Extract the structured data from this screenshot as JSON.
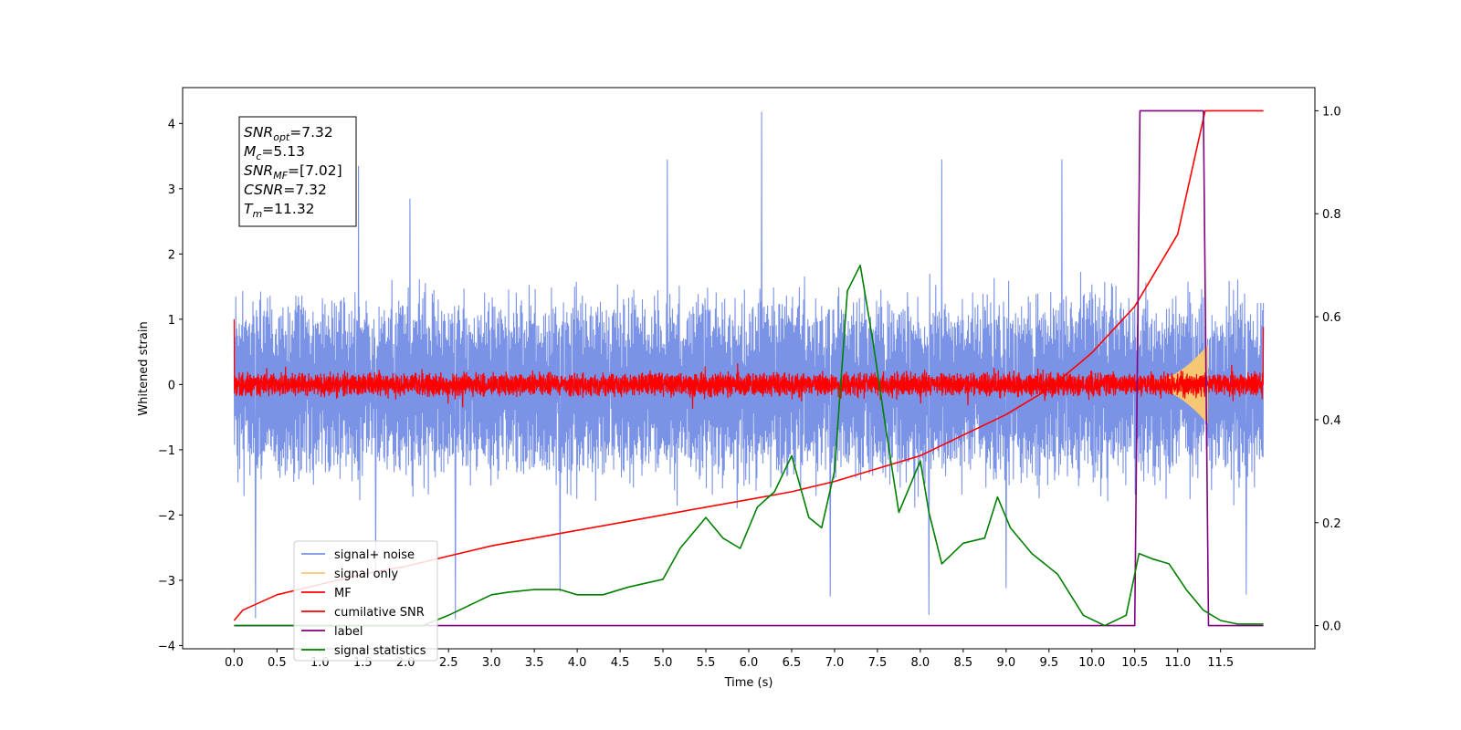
{
  "chart_data": {
    "type": "line",
    "title": "",
    "xlabel": "Time (s)",
    "ylabel": "Whitened strain",
    "y2label": "",
    "xlim": [
      -0.6,
      12.6
    ],
    "ylim": [
      -4.05,
      4.55
    ],
    "y2lim": [
      -0.045,
      1.045
    ],
    "x_ticks": [
      0.0,
      0.5,
      1.0,
      1.5,
      2.0,
      2.5,
      3.0,
      3.5,
      4.0,
      4.5,
      5.0,
      5.5,
      6.0,
      6.5,
      7.0,
      7.5,
      8.0,
      8.5,
      9.0,
      9.5,
      10.0,
      10.5,
      11.0,
      11.5
    ],
    "x_tick_labels": [
      "0.0",
      "0.5",
      "1.0",
      "1.5",
      "2.0",
      "2.5",
      "3.0",
      "3.5",
      "4.0",
      "4.5",
      "5.0",
      "5.5",
      "6.0",
      "6.5",
      "7.0",
      "7.5",
      "8.0",
      "8.5",
      "9.0",
      "9.5",
      "10.0",
      "10.5",
      "11.0",
      "11.5"
    ],
    "y_ticks": [
      4,
      3,
      2,
      1,
      0,
      -1,
      -2,
      -3,
      -4
    ],
    "y_tick_labels": [
      "4",
      "3",
      "2",
      "1",
      "0",
      "−1",
      "−2",
      "−3",
      "−4"
    ],
    "y2_ticks": [
      1.0,
      0.8,
      0.6,
      0.4,
      0.2,
      0.0
    ],
    "y2_tick_labels": [
      "1.0",
      "0.8",
      "0.6",
      "0.4",
      "0.2",
      "0.0"
    ],
    "grid": false,
    "legend_position": "lower-left",
    "annotation_box": {
      "position": "top-left",
      "lines": [
        {
          "label": "SNR",
          "sub": "opt",
          "value": "=7.32"
        },
        {
          "label": "M",
          "sub": "c",
          "value": "=5.13"
        },
        {
          "label": "SNR",
          "sub": "MF",
          "value": "=[7.02]"
        },
        {
          "label": "CSNR",
          "sub": "",
          "value": "=7.32"
        },
        {
          "label": "T",
          "sub": "m",
          "value": "=11.32"
        }
      ]
    },
    "series": [
      {
        "name": "signal+ noise",
        "axis": "left",
        "color": "#7b93e6",
        "kind": "noise_band",
        "x_range": [
          0.0,
          12.0
        ],
        "center": -0.05,
        "typical_amplitude": 1.2,
        "peaks": [
          {
            "x": 6.15,
            "y": 4.18
          },
          {
            "x": 1.45,
            "y": 3.35
          },
          {
            "x": 5.05,
            "y": 3.45
          },
          {
            "x": 8.25,
            "y": 3.45
          },
          {
            "x": 9.65,
            "y": 3.45
          },
          {
            "x": 2.05,
            "y": 2.85
          },
          {
            "x": 0.25,
            "y": -3.58
          },
          {
            "x": 8.1,
            "y": -3.53
          },
          {
            "x": 11.8,
            "y": -3.22
          },
          {
            "x": 2.58,
            "y": -3.6
          },
          {
            "x": 3.8,
            "y": -3.18
          },
          {
            "x": 6.95,
            "y": -3.25
          },
          {
            "x": 1.65,
            "y": -3.0
          },
          {
            "x": 9.0,
            "y": -3.12
          }
        ]
      },
      {
        "name": "signal only",
        "axis": "left",
        "color": "#f7c873",
        "kind": "chirp",
        "x_range": [
          10.5,
          11.35
        ],
        "peak_amplitude": 0.6
      },
      {
        "name": "MF",
        "axis": "left",
        "color": "#ff0000",
        "kind": "noise_band",
        "x_range": [
          0.0,
          12.0
        ],
        "center": 0.0,
        "typical_amplitude": 0.15,
        "edge_values": {
          "start": 1.0,
          "end": 0.88
        }
      },
      {
        "name": "cumilative SNR",
        "axis": "right",
        "color": "#ff0000",
        "x": [
          0.0,
          0.1,
          0.5,
          1.0,
          1.5,
          2.0,
          2.5,
          3.0,
          3.5,
          4.0,
          4.5,
          5.0,
          5.5,
          6.0,
          6.5,
          7.0,
          7.5,
          8.0,
          8.5,
          9.0,
          9.5,
          10.0,
          10.5,
          11.0,
          11.32,
          12.0
        ],
        "y": [
          0.01,
          0.03,
          0.06,
          0.08,
          0.1,
          0.115,
          0.135,
          0.155,
          0.17,
          0.185,
          0.2,
          0.215,
          0.23,
          0.245,
          0.26,
          0.28,
          0.305,
          0.33,
          0.37,
          0.41,
          0.46,
          0.53,
          0.62,
          0.76,
          1.0,
          1.0
        ]
      },
      {
        "name": "label",
        "axis": "right",
        "color": "#800080",
        "x": [
          0.0,
          10.5,
          10.56,
          11.3,
          11.36,
          12.0
        ],
        "y": [
          0.0,
          0.0,
          1.0,
          1.0,
          0.0,
          0.0
        ]
      },
      {
        "name": "signal statistics",
        "axis": "right",
        "color": "#008000",
        "x": [
          0.0,
          2.2,
          2.5,
          3.0,
          3.2,
          3.5,
          3.8,
          4.0,
          4.3,
          4.6,
          5.0,
          5.2,
          5.5,
          5.7,
          5.9,
          6.1,
          6.3,
          6.5,
          6.7,
          6.85,
          7.0,
          7.15,
          7.3,
          7.45,
          7.6,
          7.75,
          7.85,
          8.0,
          8.1,
          8.25,
          8.5,
          8.75,
          8.9,
          9.05,
          9.3,
          9.6,
          9.9,
          10.15,
          10.4,
          10.55,
          10.7,
          10.9,
          11.1,
          11.3,
          11.5,
          11.7,
          12.0
        ],
        "y": [
          0.0,
          0.0,
          0.02,
          0.06,
          0.065,
          0.07,
          0.07,
          0.06,
          0.06,
          0.075,
          0.09,
          0.15,
          0.21,
          0.17,
          0.15,
          0.23,
          0.26,
          0.33,
          0.21,
          0.19,
          0.3,
          0.65,
          0.7,
          0.55,
          0.38,
          0.22,
          0.26,
          0.32,
          0.22,
          0.12,
          0.16,
          0.17,
          0.25,
          0.19,
          0.14,
          0.1,
          0.02,
          0.0,
          0.02,
          0.14,
          0.13,
          0.12,
          0.07,
          0.03,
          0.01,
          0.003,
          0.003
        ]
      }
    ]
  }
}
